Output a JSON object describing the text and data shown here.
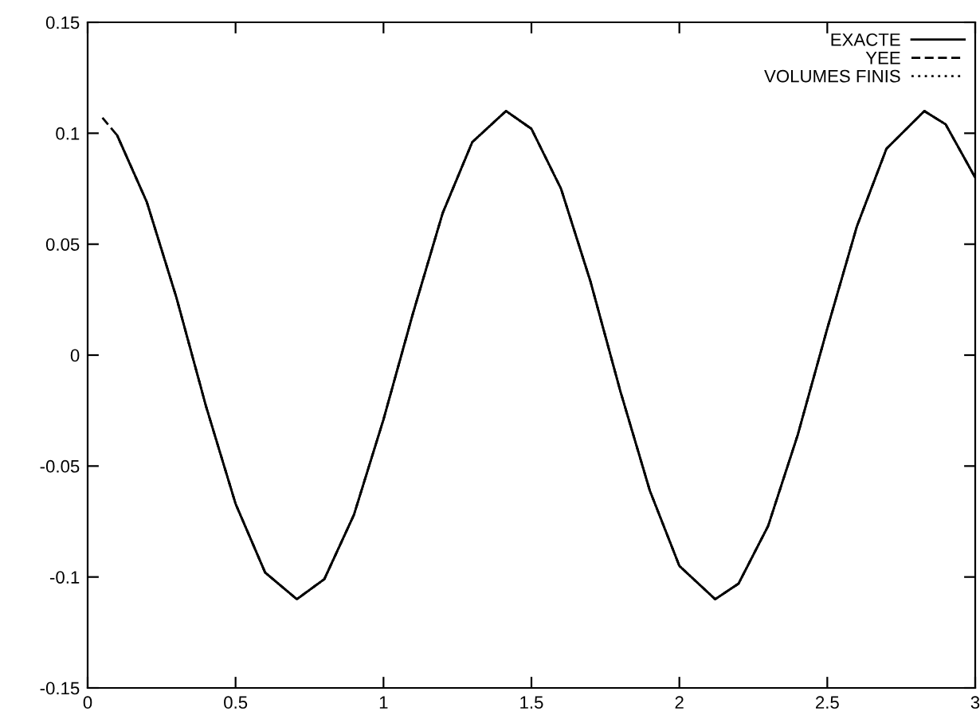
{
  "chart_data": {
    "type": "line",
    "x": [
      0.1,
      0.2,
      0.3,
      0.4,
      0.5,
      0.6,
      0.707,
      0.8,
      0.9,
      1.0,
      1.1,
      1.2,
      1.3,
      1.414,
      1.5,
      1.6,
      1.7,
      1.8,
      1.9,
      2.0,
      2.121,
      2.2,
      2.3,
      2.4,
      2.5,
      2.6,
      2.7,
      2.828,
      2.9,
      3.0
    ],
    "series": [
      {
        "name": "EXACTE",
        "color": "#000000",
        "line_style": "solid",
        "values": [
          0.099,
          0.069,
          0.026,
          -0.023,
          -0.067,
          -0.098,
          -0.11,
          -0.101,
          -0.072,
          -0.029,
          0.019,
          0.064,
          0.096,
          0.11,
          0.102,
          0.075,
          0.033,
          -0.016,
          -0.061,
          -0.095,
          -0.11,
          -0.103,
          -0.077,
          -0.036,
          0.012,
          0.058,
          0.093,
          0.11,
          0.104,
          0.08
        ]
      },
      {
        "name": "YEE",
        "color": "#000000",
        "line_style": "dashed",
        "x": [
          0.05,
          0.1,
          0.2,
          0.3,
          0.4,
          0.5,
          0.6,
          0.707,
          0.8,
          0.9,
          1.0,
          1.1,
          1.2,
          1.3,
          1.414,
          1.5,
          1.6,
          1.7,
          1.8,
          1.9,
          2.0,
          2.121,
          2.2,
          2.3,
          2.4,
          2.5,
          2.6,
          2.7,
          2.828,
          2.9,
          3.0
        ],
        "values": [
          0.107,
          0.099,
          0.069,
          0.026,
          -0.023,
          -0.067,
          -0.098,
          -0.11,
          -0.101,
          -0.072,
          -0.029,
          0.019,
          0.064,
          0.096,
          0.11,
          0.102,
          0.075,
          0.033,
          -0.016,
          -0.061,
          -0.095,
          -0.11,
          -0.103,
          -0.077,
          -0.036,
          0.012,
          0.058,
          0.093,
          0.11,
          0.104,
          0.08
        ]
      },
      {
        "name": "VOLUMES FINIS",
        "color": "#000000",
        "line_style": "dotted",
        "values": [
          0.099,
          0.069,
          0.026,
          -0.023,
          -0.067,
          -0.098,
          -0.11,
          -0.101,
          -0.072,
          -0.029,
          0.019,
          0.064,
          0.096,
          0.11,
          0.102,
          0.075,
          0.033,
          -0.016,
          -0.061,
          -0.095,
          -0.11,
          -0.103,
          -0.077,
          -0.036,
          0.012,
          0.058,
          0.093,
          0.11,
          0.104,
          0.08
        ]
      }
    ],
    "xlim": [
      0,
      3
    ],
    "xticks": [
      0,
      0.5,
      1,
      1.5,
      2,
      2.5,
      3
    ],
    "ylim": [
      -0.15,
      0.15
    ],
    "yticks": [
      -0.15,
      -0.1,
      -0.05,
      0,
      0.05,
      0.1,
      0.15
    ],
    "legend": "top right",
    "grid": false
  }
}
